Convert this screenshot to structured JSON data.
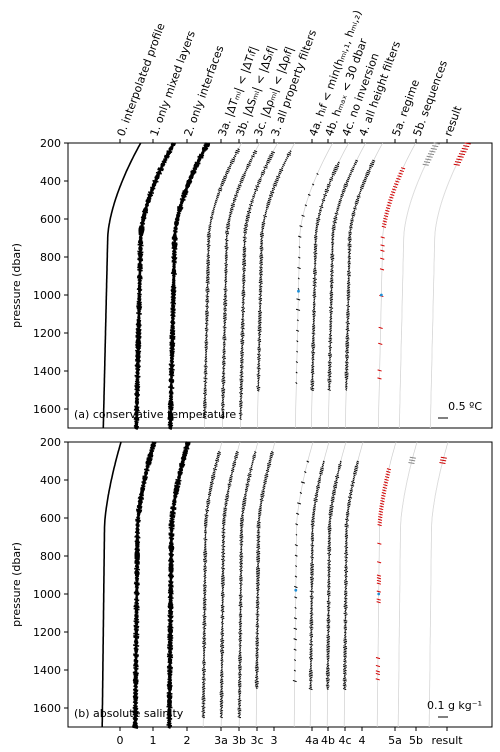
{
  "chart_data": [
    {
      "panel": "a",
      "type": "scatter",
      "ylabel": "pressure (dbar)",
      "ylim": [
        1700,
        200
      ],
      "yticks": [
        200,
        400,
        600,
        800,
        1000,
        1200,
        1400,
        1600
      ],
      "annotation": "(a)  conservative temperature",
      "scale_bar_label": "0.5 ºC",
      "columns": [
        {
          "label": "0. interpolated profile",
          "style": "solid"
        },
        {
          "label": "1. only mixed layers",
          "style": "dense"
        },
        {
          "label": "2. only interfaces",
          "style": "dense"
        },
        {
          "label": "3a. |ΔTₘₗ| < |ΔTᵢf|",
          "style": "dots"
        },
        {
          "label": "3b. |ΔSₘₗ| < |ΔSᵢf|",
          "style": "dots"
        },
        {
          "label": "3c. |Δρₘₗ| < |Δρᵢf|",
          "style": "dots"
        },
        {
          "label": "3. all property filters",
          "style": "dots"
        },
        {
          "label": "4a. hᵢf < min(hₘₗ,₁, hₘₗ,₂)",
          "style": "sparse"
        },
        {
          "label": "4b. hₘₐₓ < 30 dbar",
          "style": "dots"
        },
        {
          "label": "4c. no inversion",
          "style": "dots"
        },
        {
          "label": "4. all height filters",
          "style": "dots"
        },
        {
          "label": "5a. regime",
          "style": "red"
        },
        {
          "label": "5b. sequences",
          "style": "faint"
        },
        {
          "label": "result",
          "style": "faint"
        }
      ]
    },
    {
      "panel": "b",
      "type": "scatter",
      "ylabel": "pressure (dbar)",
      "ylim": [
        1700,
        200
      ],
      "yticks": [
        200,
        400,
        600,
        800,
        1000,
        1200,
        1400,
        1600
      ],
      "annotation": "(b)  absolute salinity",
      "scale_bar_label": "0.1 g kg⁻¹",
      "xtick_labels": [
        "0",
        "1",
        "2",
        "3a",
        "3b",
        "3c",
        "3",
        "4a",
        "4b",
        "4c",
        "4",
        "5a",
        "5b",
        "result"
      ]
    }
  ]
}
